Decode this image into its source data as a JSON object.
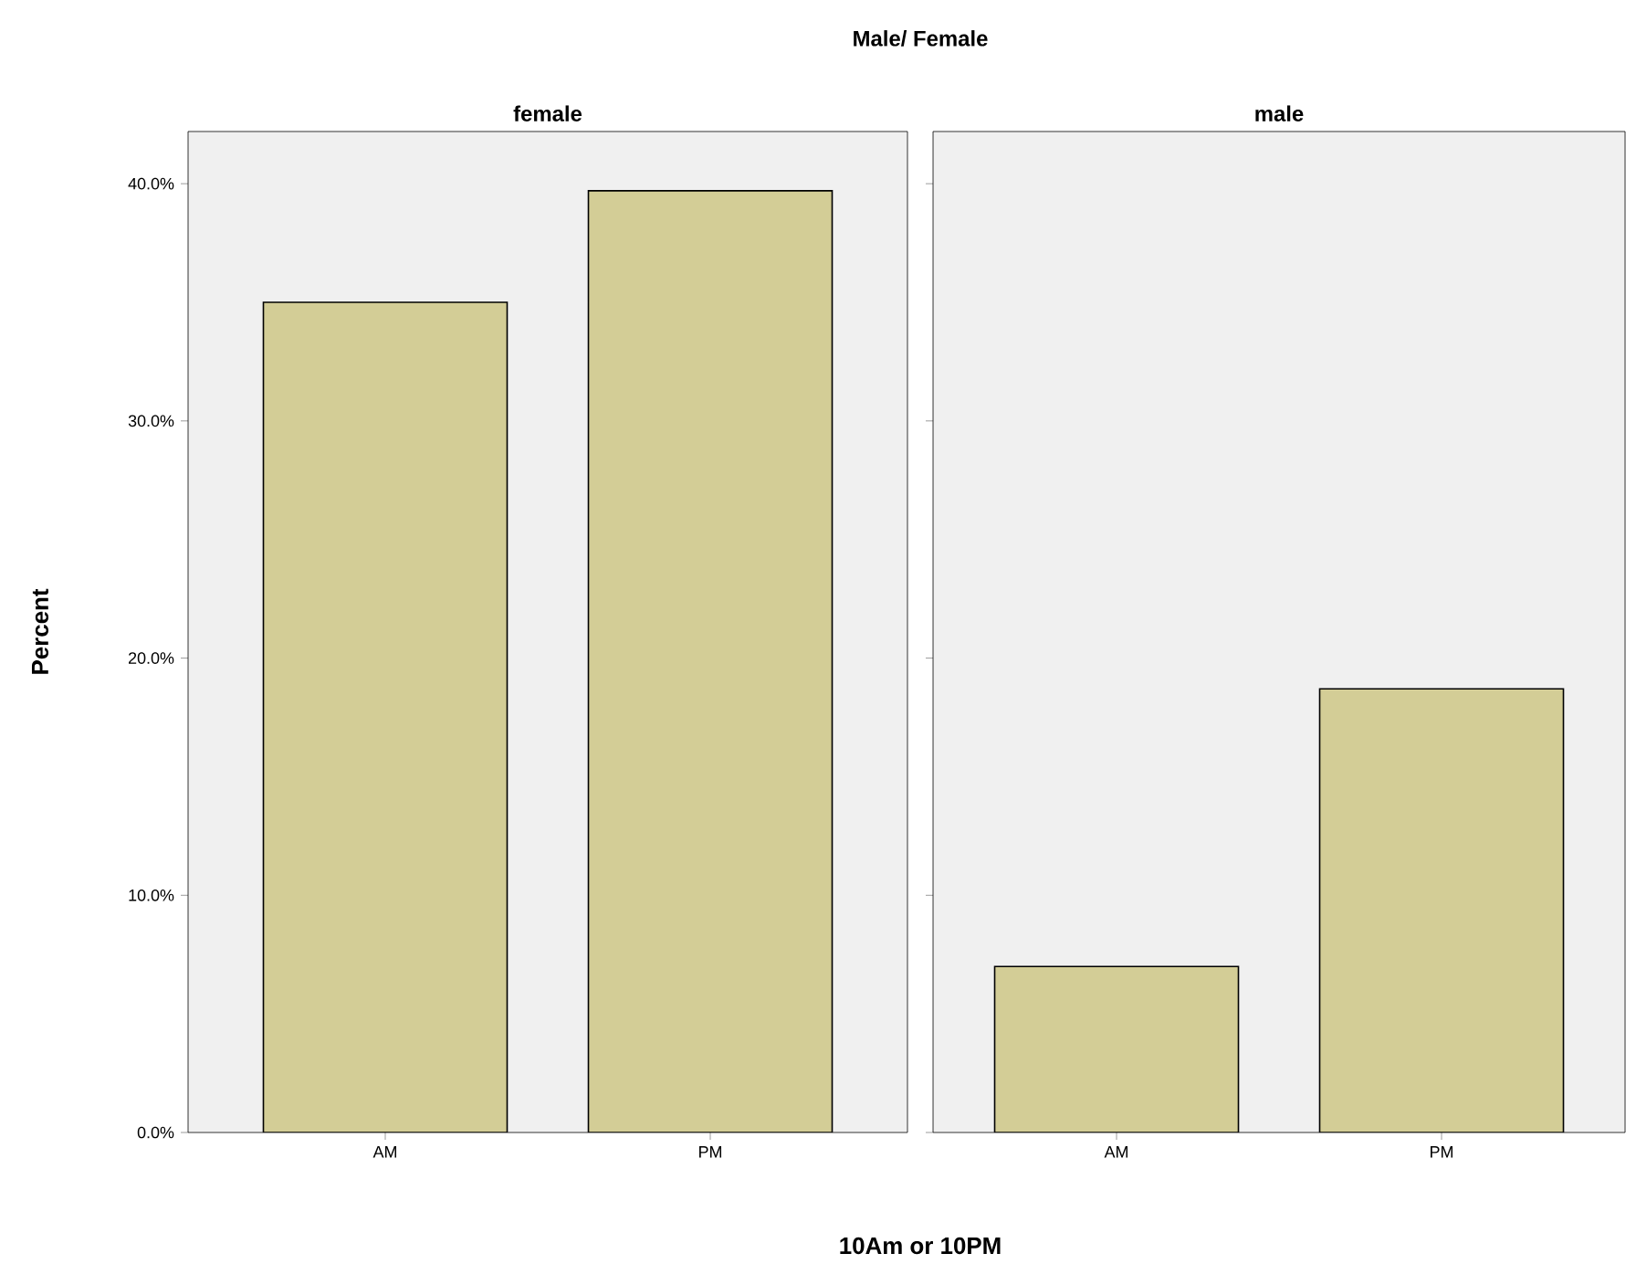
{
  "chart_data": [
    {
      "type": "bar",
      "title": "female",
      "annotations": [
        "Male/ Female"
      ],
      "xlabel": "10Am or 10PM",
      "ylabel": "Percent",
      "categories": [
        "AM",
        "PM"
      ],
      "values": [
        35.0,
        39.7
      ],
      "color": "#d3cd96",
      "ylim": [
        0,
        42.2
      ],
      "yticks": [
        {
          "value": 0,
          "label": "0.0%"
        },
        {
          "value": 10,
          "label": "10.0%"
        },
        {
          "value": 20,
          "label": "20.0%"
        },
        {
          "value": 30,
          "label": "30.0%"
        },
        {
          "value": 40,
          "label": "40.0%"
        }
      ]
    },
    {
      "type": "bar",
      "title": "male",
      "categories": [
        "AM",
        "PM"
      ],
      "values": [
        7.0,
        18.7
      ],
      "color": "#d3cd96",
      "ylim": [
        0,
        42.2
      ],
      "tick_labels": "x",
      "yticks": [
        0,
        10,
        20,
        30,
        40
      ]
    }
  ]
}
